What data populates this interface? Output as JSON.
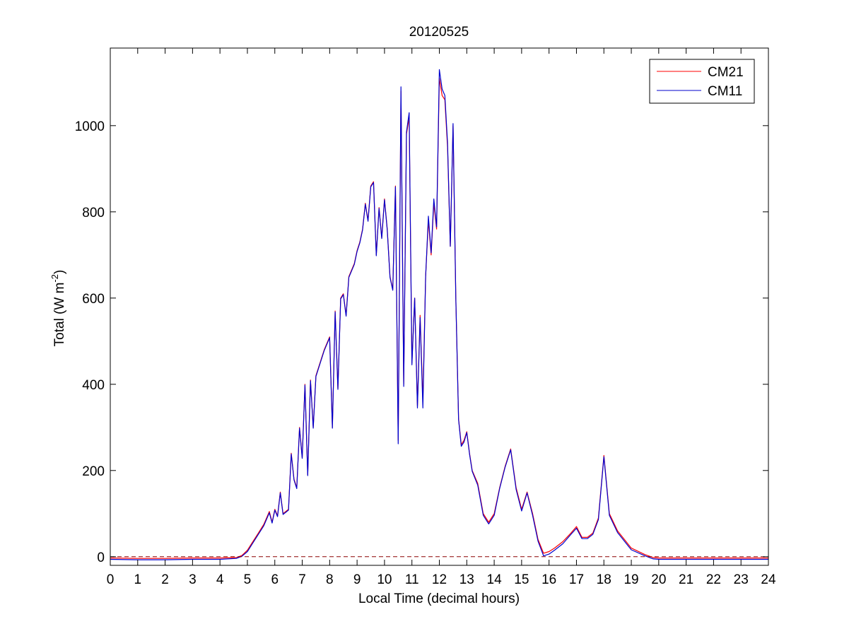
{
  "chart_data": {
    "type": "line",
    "title": "20120525",
    "xlabel": "Local Time (decimal hours)",
    "ylabel_main": "Total (W m",
    "ylabel_sup": "-2",
    "ylabel_tail": ")",
    "xlim": [
      0,
      24
    ],
    "ylim": [
      -20,
      1180
    ],
    "xticks": [
      0,
      1,
      2,
      3,
      4,
      5,
      6,
      7,
      8,
      9,
      10,
      11,
      12,
      13,
      14,
      15,
      16,
      17,
      18,
      19,
      20,
      21,
      22,
      23,
      24
    ],
    "yticks": [
      0,
      200,
      400,
      600,
      800,
      1000
    ],
    "grid": false,
    "legend_position": "top-right",
    "zero_line": {
      "y": 0,
      "color": "#8b0000",
      "style": "dashed"
    },
    "series": [
      {
        "name": "CM21",
        "color": "#ff0000",
        "x": [
          0,
          1,
          2,
          3,
          4,
          4.6,
          4.8,
          5.0,
          5.2,
          5.4,
          5.6,
          5.8,
          5.9,
          6.0,
          6.1,
          6.2,
          6.3,
          6.5,
          6.6,
          6.7,
          6.8,
          6.9,
          7.0,
          7.1,
          7.2,
          7.3,
          7.4,
          7.5,
          7.6,
          7.8,
          8.0,
          8.1,
          8.2,
          8.3,
          8.4,
          8.5,
          8.6,
          8.7,
          8.9,
          9.0,
          9.1,
          9.2,
          9.3,
          9.4,
          9.5,
          9.6,
          9.7,
          9.8,
          9.9,
          10.0,
          10.1,
          10.2,
          10.3,
          10.4,
          10.5,
          10.6,
          10.7,
          10.8,
          10.9,
          11.0,
          11.1,
          11.2,
          11.3,
          11.4,
          11.5,
          11.6,
          11.7,
          11.8,
          11.9,
          12.0,
          12.1,
          12.2,
          12.3,
          12.4,
          12.5,
          12.6,
          12.7,
          12.8,
          12.9,
          13.0,
          13.1,
          13.2,
          13.4,
          13.6,
          13.8,
          14.0,
          14.2,
          14.4,
          14.6,
          14.8,
          15.0,
          15.2,
          15.4,
          15.6,
          15.8,
          16.0,
          16.2,
          16.5,
          16.8,
          17.0,
          17.2,
          17.4,
          17.6,
          17.8,
          18.0,
          18.2,
          18.5,
          19.0,
          19.5,
          19.8,
          20,
          21,
          22,
          23,
          24
        ],
        "y": [
          -3,
          -4,
          -4,
          -3,
          -3,
          -2,
          3,
          15,
          35,
          55,
          75,
          105,
          80,
          110,
          95,
          150,
          100,
          110,
          240,
          180,
          160,
          300,
          230,
          400,
          190,
          410,
          300,
          420,
          440,
          480,
          510,
          300,
          570,
          390,
          600,
          610,
          560,
          650,
          680,
          710,
          730,
          760,
          820,
          780,
          860,
          870,
          700,
          810,
          740,
          830,
          760,
          650,
          620,
          860,
          270,
          1080,
          400,
          980,
          1020,
          450,
          600,
          350,
          560,
          360,
          650,
          780,
          700,
          820,
          760,
          1110,
          1070,
          1060,
          950,
          720,
          1000,
          600,
          320,
          260,
          270,
          290,
          240,
          200,
          170,
          100,
          80,
          100,
          160,
          210,
          250,
          160,
          110,
          150,
          100,
          40,
          8,
          12,
          20,
          35,
          55,
          70,
          45,
          45,
          55,
          90,
          235,
          100,
          60,
          20,
          5,
          -2,
          -3,
          -3,
          -3,
          -3,
          -3
        ]
      },
      {
        "name": "CM11",
        "color": "#0000cd",
        "x": [
          0,
          1,
          2,
          3,
          4,
          4.6,
          4.8,
          5.0,
          5.2,
          5.4,
          5.6,
          5.8,
          5.9,
          6.0,
          6.1,
          6.2,
          6.3,
          6.5,
          6.6,
          6.7,
          6.8,
          6.9,
          7.0,
          7.1,
          7.2,
          7.3,
          7.4,
          7.5,
          7.6,
          7.8,
          8.0,
          8.1,
          8.2,
          8.3,
          8.4,
          8.5,
          8.6,
          8.7,
          8.9,
          9.0,
          9.1,
          9.2,
          9.3,
          9.4,
          9.5,
          9.6,
          9.7,
          9.8,
          9.9,
          10.0,
          10.1,
          10.2,
          10.3,
          10.4,
          10.5,
          10.6,
          10.7,
          10.8,
          10.9,
          11.0,
          11.1,
          11.2,
          11.3,
          11.4,
          11.5,
          11.6,
          11.7,
          11.8,
          11.9,
          12.0,
          12.1,
          12.2,
          12.3,
          12.4,
          12.5,
          12.6,
          12.7,
          12.8,
          12.9,
          13.0,
          13.1,
          13.2,
          13.4,
          13.6,
          13.8,
          14.0,
          14.2,
          14.4,
          14.6,
          14.8,
          15.0,
          15.2,
          15.4,
          15.6,
          15.8,
          16.0,
          16.2,
          16.5,
          16.8,
          17.0,
          17.2,
          17.4,
          17.6,
          17.8,
          18.0,
          18.2,
          18.5,
          19.0,
          19.5,
          19.8,
          20,
          21,
          22,
          23,
          24
        ],
        "y": [
          -6,
          -7,
          -7,
          -6,
          -6,
          -4,
          1,
          12,
          32,
          52,
          72,
          102,
          78,
          108,
          93,
          148,
          98,
          108,
          238,
          178,
          158,
          298,
          228,
          398,
          188,
          408,
          298,
          418,
          438,
          478,
          508,
          298,
          568,
          388,
          598,
          608,
          558,
          648,
          678,
          708,
          728,
          758,
          818,
          778,
          858,
          868,
          698,
          808,
          738,
          828,
          758,
          648,
          618,
          858,
          262,
          1090,
          395,
          985,
          1030,
          445,
          600,
          345,
          555,
          345,
          650,
          790,
          705,
          830,
          765,
          1130,
          1085,
          1070,
          960,
          720,
          1005,
          600,
          318,
          256,
          266,
          288,
          238,
          198,
          166,
          96,
          76,
          96,
          158,
          208,
          248,
          156,
          106,
          148,
          96,
          36,
          2,
          6,
          15,
          30,
          52,
          66,
          42,
          42,
          52,
          86,
          232,
          96,
          56,
          16,
          2,
          -5,
          -6,
          -6,
          -6,
          -6,
          -6
        ]
      }
    ]
  }
}
